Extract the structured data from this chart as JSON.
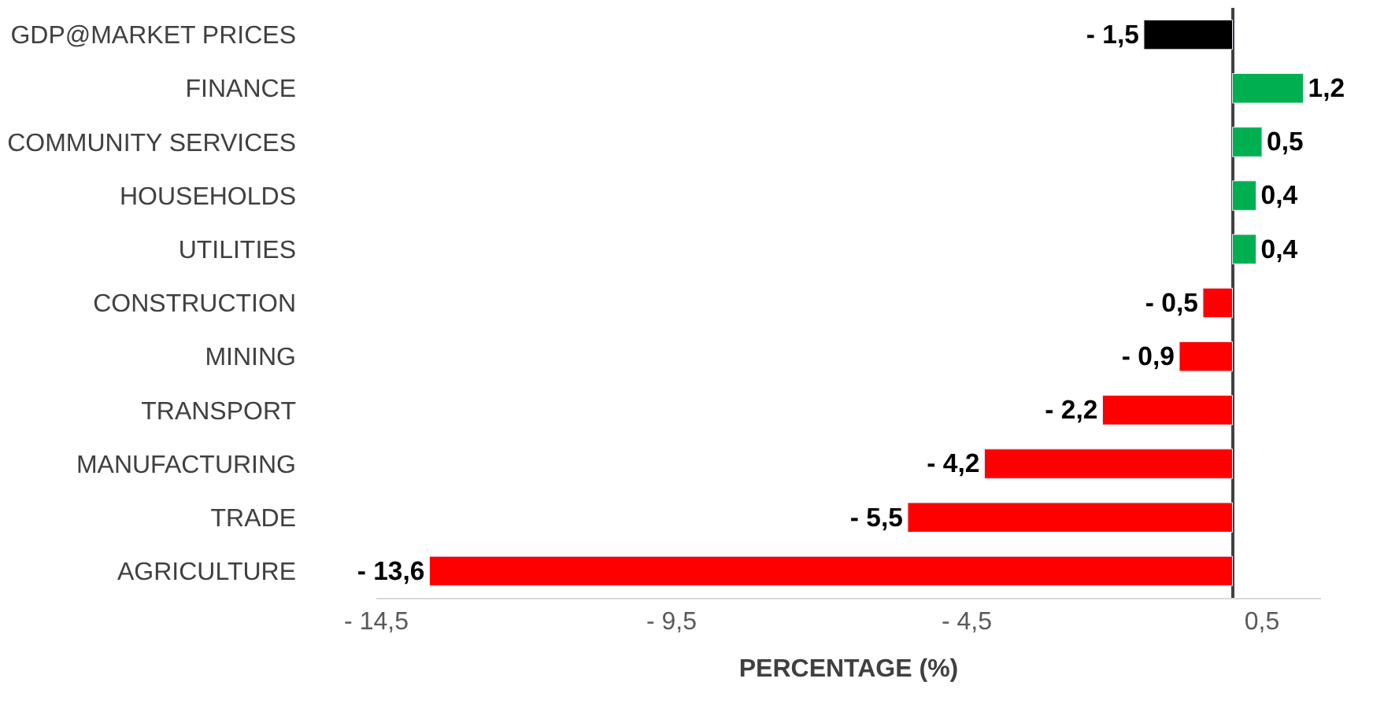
{
  "chart_data": {
    "type": "bar",
    "orientation": "horizontal",
    "xlabel": "PERCENTAGE (%)",
    "categories": [
      "GDP@MARKET PRICES",
      "FINANCE",
      "COMMUNITY SERVICES",
      "HOUSEHOLDS",
      "UTILITIES",
      "CONSTRUCTION",
      "MINING",
      "TRANSPORT",
      "MANUFACTURING",
      "TRADE",
      "AGRICULTURE"
    ],
    "values": [
      -1.5,
      1.2,
      0.5,
      0.4,
      0.4,
      -0.5,
      -0.9,
      -2.2,
      -4.2,
      -5.5,
      -13.6
    ],
    "colors": [
      "#000000",
      "#00b050",
      "#00b050",
      "#00b050",
      "#00b050",
      "#ff0000",
      "#ff0000",
      "#ff0000",
      "#ff0000",
      "#ff0000",
      "#ff0000"
    ],
    "value_labels": [
      "- 1,5",
      "1,2",
      "0,5",
      "0,4",
      "0,4",
      "- 0,5",
      "- 0,9",
      "- 2,2",
      "- 4,2",
      "- 5,5",
      "- 13,6"
    ],
    "xlim": [
      -14.5,
      1.5
    ],
    "xticks": [
      {
        "value": -14.5,
        "label": "- 14,5"
      },
      {
        "value": -9.5,
        "label": "- 9,5"
      },
      {
        "value": -4.5,
        "label": "- 4,5"
      },
      {
        "value": 0.5,
        "label": "0,5"
      }
    ],
    "legend": false
  }
}
